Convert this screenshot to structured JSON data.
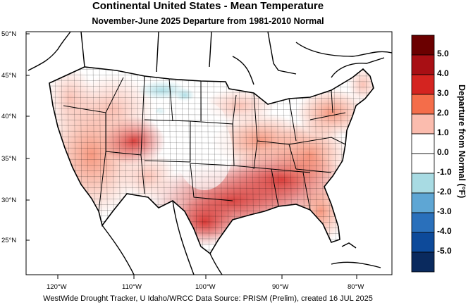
{
  "title": "Continental United States - Mean Temperature",
  "subtitle": "November-June 2025  Departure from 1981-2010 Normal",
  "footer": "WestWide Drought Tracker, U Idaho/WRCC Data Source: PRISM (Prelim), created 16 JUL 2025",
  "lat_labels": [
    "50°N",
    "45°N",
    "40°N",
    "35°N",
    "30°N",
    "25°N"
  ],
  "lon_labels": [
    "120°W",
    "110°W",
    "100°W",
    "90°W",
    "80°W"
  ],
  "colorbar": {
    "title": "Departure from Normal (°F)",
    "labels": [
      "5.0",
      "4.0",
      "3.0",
      "2.0",
      "1.0",
      "0.0",
      "-1.0",
      "-2.0",
      "-3.0",
      "-4.0",
      "-5.0"
    ],
    "colors": [
      "#6b0000",
      "#a80f14",
      "#d42420",
      "#f46d4a",
      "#fbbcae",
      "#ffffff",
      "#ffffff",
      "#a8dbe3",
      "#5ea6d4",
      "#2a70bb",
      "#0d4a9a",
      "#0a2a5e"
    ]
  }
}
